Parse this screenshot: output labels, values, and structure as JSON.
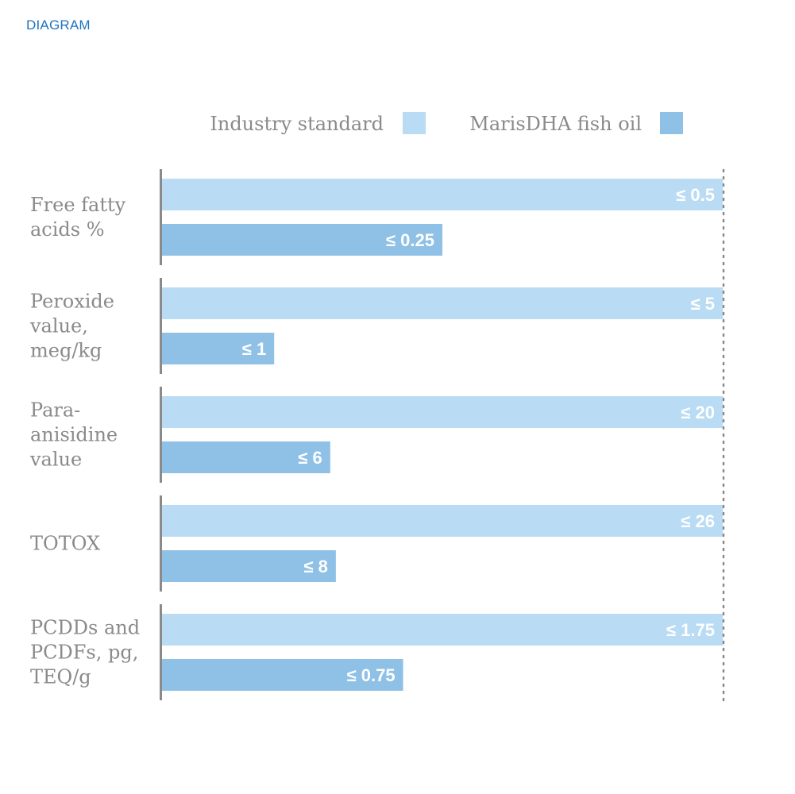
{
  "header": {
    "label": "DIAGRAM"
  },
  "colors": {
    "industry": "#b9dbf4",
    "maris": "#8fc0e6",
    "axis": "#8a8a8a",
    "text": "#8a8a8a",
    "value_text": "#ffffff",
    "header": "#1f74c0"
  },
  "chart_data": {
    "type": "bar",
    "orientation": "horizontal",
    "legend_position": "top-right",
    "series": [
      {
        "name": "Industry standard",
        "color": "#b9dbf4",
        "values": [
          100,
          100,
          100,
          100,
          100
        ],
        "labels": [
          "≤ 0.5",
          "≤ 5",
          "≤ 20",
          "≤ 26",
          "≤ 1.75"
        ]
      },
      {
        "name": "MarisDHA fish oil",
        "color": "#8fc0e6",
        "values": [
          50,
          20,
          30,
          31,
          43
        ],
        "labels": [
          "≤ 0.25",
          "≤ 1",
          "≤ 6",
          "≤ 8",
          "≤ 0.75"
        ]
      }
    ],
    "categories": [
      {
        "lines": [
          "Free fatty",
          "acids %"
        ]
      },
      {
        "lines": [
          "Peroxide",
          "value,",
          "meg/kg"
        ]
      },
      {
        "lines": [
          "Para-",
          "anisidine",
          "value"
        ]
      },
      {
        "lines": [
          "TOTOX"
        ]
      },
      {
        "lines": [
          "PCDDs and",
          "PCDFs, pg,",
          "TEQ/g"
        ]
      }
    ],
    "xlim": [
      0,
      100
    ]
  }
}
